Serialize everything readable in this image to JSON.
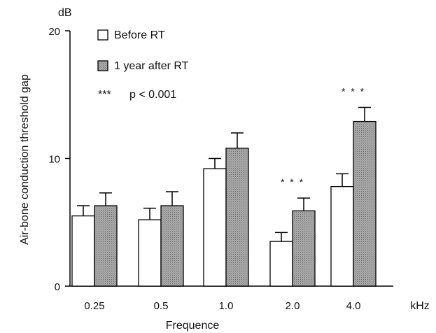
{
  "chart_data": {
    "type": "bar",
    "ylabel": "Air-bone conduction threshold gap",
    "yunit": "dB",
    "xlabel": "Frequence",
    "xunit": "kHz",
    "ylim": [
      0,
      20
    ],
    "yticks": [
      "0",
      "10",
      "20"
    ],
    "categories": [
      "0.25",
      "0.5",
      "1.0",
      "2.0",
      "4.0"
    ],
    "series": [
      {
        "name": "Before RT",
        "color": "#ffffff",
        "values": [
          5.5,
          5.2,
          9.2,
          3.5,
          7.8
        ],
        "errors": [
          0.8,
          0.9,
          0.8,
          0.7,
          1.0
        ]
      },
      {
        "name": "1 year after RT",
        "color": "#a9a9a9",
        "values": [
          6.3,
          6.3,
          10.8,
          5.9,
          12.9
        ],
        "errors": [
          1.0,
          1.1,
          1.2,
          1.0,
          1.1
        ]
      }
    ],
    "significance": [
      {
        "category": "2.0",
        "label": "* * *"
      },
      {
        "category": "4.0",
        "label": "* * *"
      }
    ],
    "legend": {
      "position": "top-left",
      "note_symbol": "***",
      "note_text": "p < 0.001"
    },
    "grid": false
  }
}
